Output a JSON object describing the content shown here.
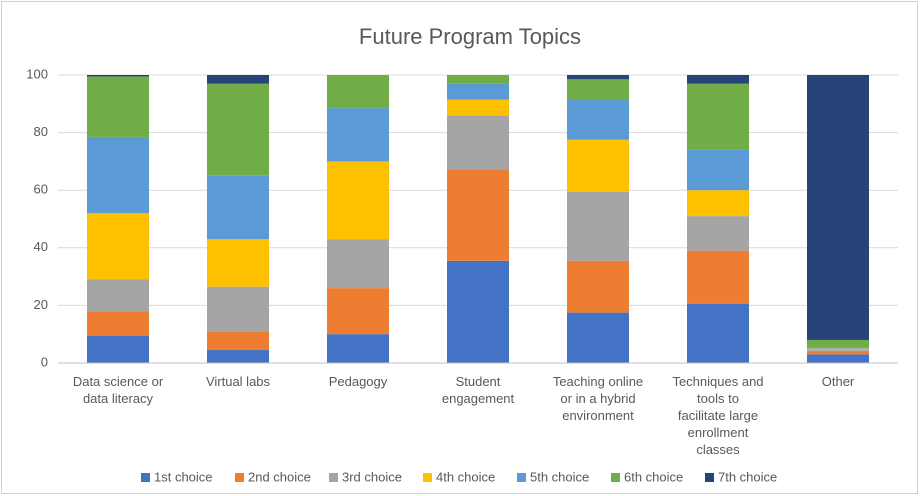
{
  "chart_data": {
    "type": "bar",
    "stacked": true,
    "title": "Future Program Topics",
    "categories": [
      "Data science or data literacy",
      "Virtual labs",
      "Pedagogy",
      "Student engagement",
      "Teaching online or in a hybrid environment",
      "Techniques and tools to facilitate large enrollment classes",
      "Other"
    ],
    "series": [
      {
        "name": "1st choice",
        "color": "#4472c4",
        "values": [
          9.5,
          4.5,
          10,
          35.5,
          17.5,
          20.5,
          3
        ]
      },
      {
        "name": "2nd choice",
        "color": "#ed7d31",
        "values": [
          8.5,
          6.5,
          16,
          31.5,
          18,
          18.5,
          1
        ]
      },
      {
        "name": "3rd choice",
        "color": "#a5a5a5",
        "values": [
          11,
          15.5,
          17,
          19,
          24,
          12,
          0.5
        ]
      },
      {
        "name": "4th choice",
        "color": "#ffc000",
        "values": [
          23,
          16.5,
          27,
          5.5,
          18,
          9,
          0.5
        ]
      },
      {
        "name": "5th choice",
        "color": "#5b9bd5",
        "values": [
          26.5,
          22,
          18.5,
          5.5,
          14,
          14,
          0.5
        ]
      },
      {
        "name": "6th choice",
        "color": "#70ad47",
        "values": [
          21,
          32,
          11.5,
          3,
          7,
          23,
          2.5
        ]
      },
      {
        "name": "7th choice",
        "color": "#264478",
        "values": [
          0.5,
          3,
          0,
          0,
          1.5,
          3,
          92
        ]
      }
    ],
    "ylim": [
      0,
      100
    ],
    "yticks": [
      0,
      20,
      40,
      60,
      80,
      100
    ],
    "grid": true,
    "legend": "bottom"
  }
}
